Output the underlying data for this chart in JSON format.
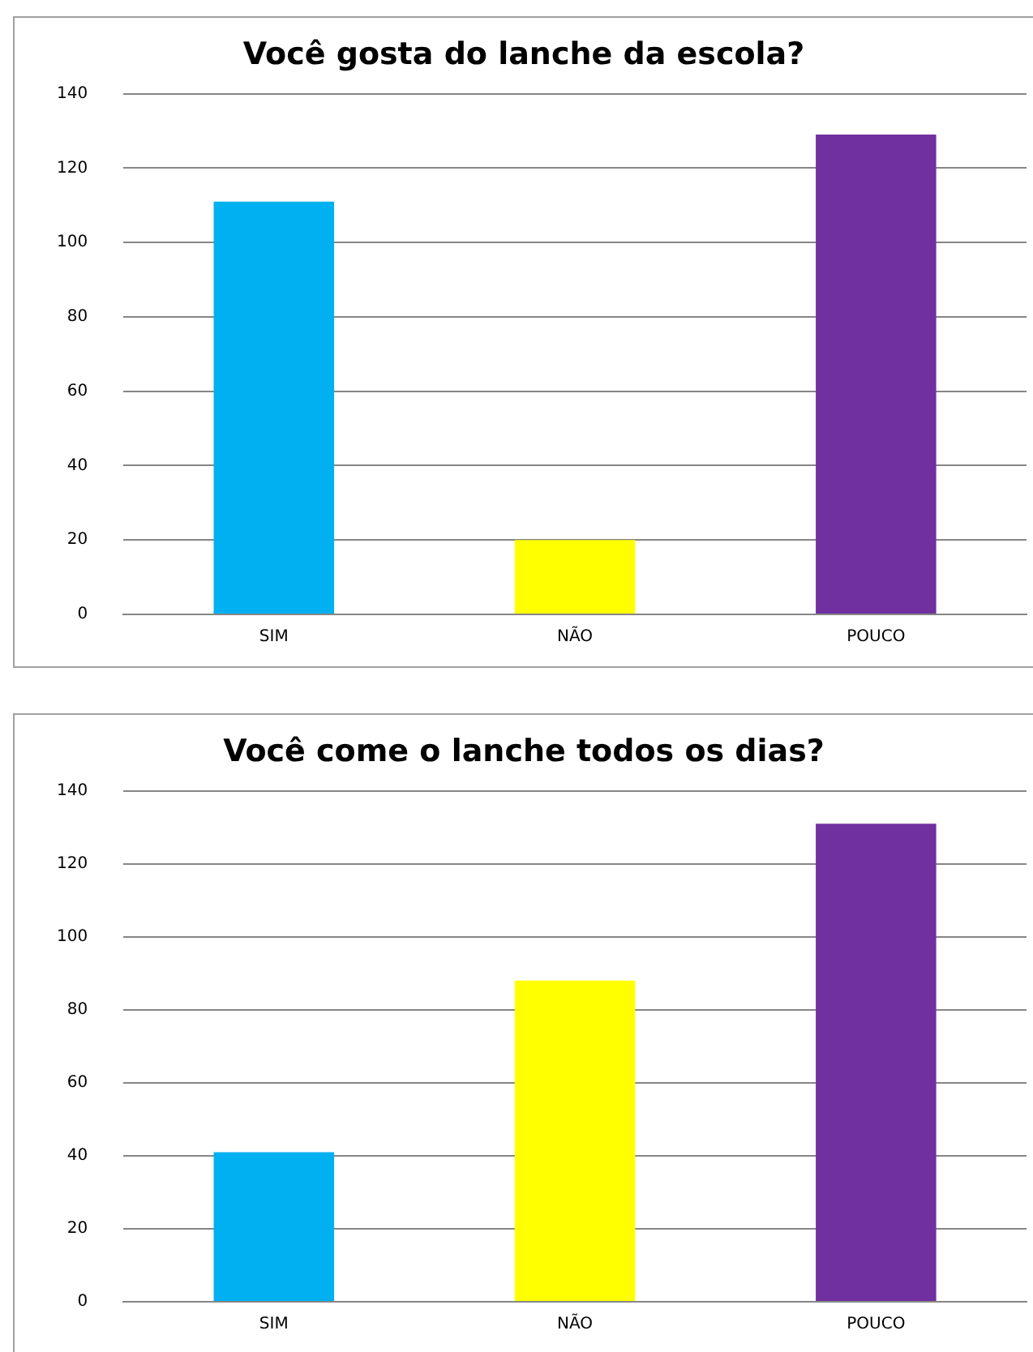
{
  "chart_data": [
    {
      "type": "bar",
      "title": "Você gosta do lanche da escola?",
      "categories": [
        "SIM",
        "NÃO",
        "POUCO"
      ],
      "values": [
        111,
        20,
        129
      ],
      "colors": [
        "#00b0f0",
        "#ffff00",
        "#7030a0"
      ],
      "ylim": [
        0,
        140
      ],
      "yticks": [
        0,
        20,
        40,
        60,
        80,
        100,
        120,
        140
      ],
      "grid": "y",
      "legend": false
    },
    {
      "type": "bar",
      "title": "Você come o lanche todos os dias?",
      "categories": [
        "SIM",
        "NÃO",
        "POUCO"
      ],
      "values": [
        41,
        88,
        131
      ],
      "colors": [
        "#00b0f0",
        "#ffff00",
        "#7030a0"
      ],
      "ylim": [
        0,
        140
      ],
      "yticks": [
        0,
        20,
        40,
        60,
        80,
        100,
        120,
        140
      ],
      "grid": "y",
      "legend": false
    }
  ]
}
